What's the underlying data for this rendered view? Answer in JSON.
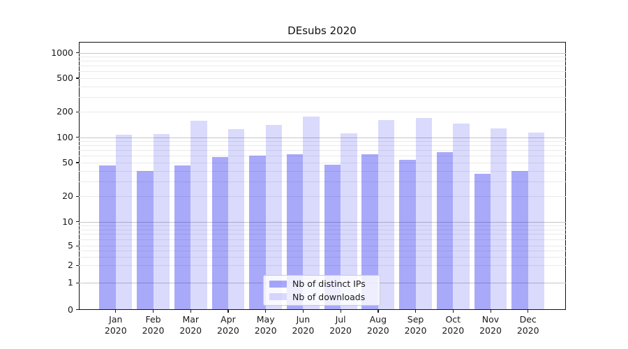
{
  "figure_title": "DEsubs 2020",
  "chart_data": {
    "type": "bar",
    "title": "DEsubs 2020",
    "categories": [
      "Jan",
      "Feb",
      "Mar",
      "Apr",
      "May",
      "Jun",
      "Jul",
      "Aug",
      "Sep",
      "Oct",
      "Nov",
      "Dec"
    ],
    "x_tick_second_line": "2020",
    "series": [
      {
        "name": "Nb of distinct IPs",
        "color": "rgba(10,10,240,0.35)",
        "values": [
          46,
          40,
          46,
          58,
          60,
          63,
          47,
          63,
          54,
          67,
          37,
          40
        ]
      },
      {
        "name": "Nb of downloads",
        "color": "rgba(10,10,240,0.15)",
        "values": [
          106,
          108,
          156,
          124,
          139,
          174,
          110,
          158,
          168,
          144,
          127,
          113
        ]
      }
    ],
    "yscale": "symlog",
    "y_ticks": [
      0,
      1,
      2,
      5,
      10,
      20,
      50,
      100,
      200,
      500,
      1000
    ],
    "ylim": [
      0,
      1350
    ],
    "grid": "horizontal major+minor",
    "legend_position": "lower center",
    "axis_color": "#111111",
    "major_grid_color": "#c6c6c6",
    "minor_grid_color": "#eaeaea"
  }
}
